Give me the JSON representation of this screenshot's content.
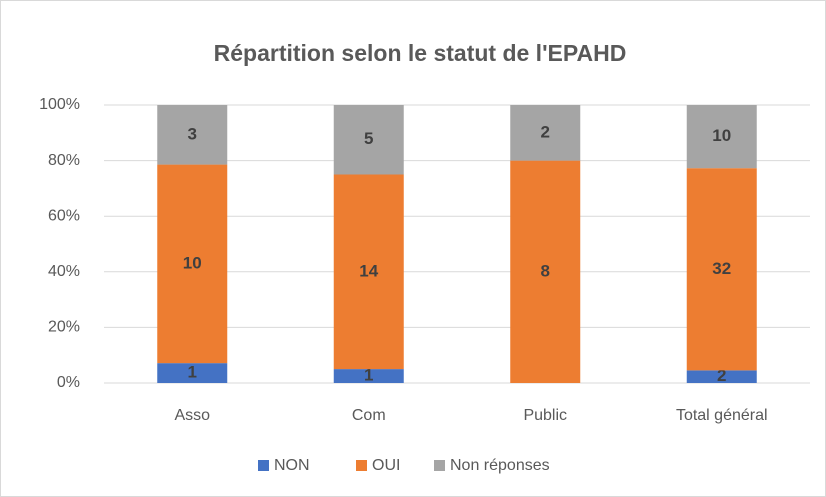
{
  "chart_data": {
    "type": "bar",
    "stacked": "percent",
    "title": "Répartition selon le statut de l'EPAHD",
    "categories": [
      "Asso",
      "Com",
      "Public",
      "Total général"
    ],
    "series": [
      {
        "name": "NON",
        "color": "#4472c4",
        "values": [
          1,
          1,
          0,
          2
        ]
      },
      {
        "name": "OUI",
        "color": "#ed7d31",
        "values": [
          10,
          14,
          8,
          32
        ]
      },
      {
        "name": "Non réponses",
        "color": "#a5a5a5",
        "values": [
          3,
          5,
          2,
          10
        ]
      }
    ],
    "ylim": [
      0,
      100
    ],
    "yticks": [
      {
        "value": 0,
        "label": "0%"
      },
      {
        "value": 20,
        "label": "20%"
      },
      {
        "value": 40,
        "label": "40%"
      },
      {
        "value": 60,
        "label": "60%"
      },
      {
        "value": 80,
        "label": "80%"
      },
      {
        "value": 100,
        "label": "100%"
      }
    ],
    "grid": true,
    "legend": "bottom"
  }
}
